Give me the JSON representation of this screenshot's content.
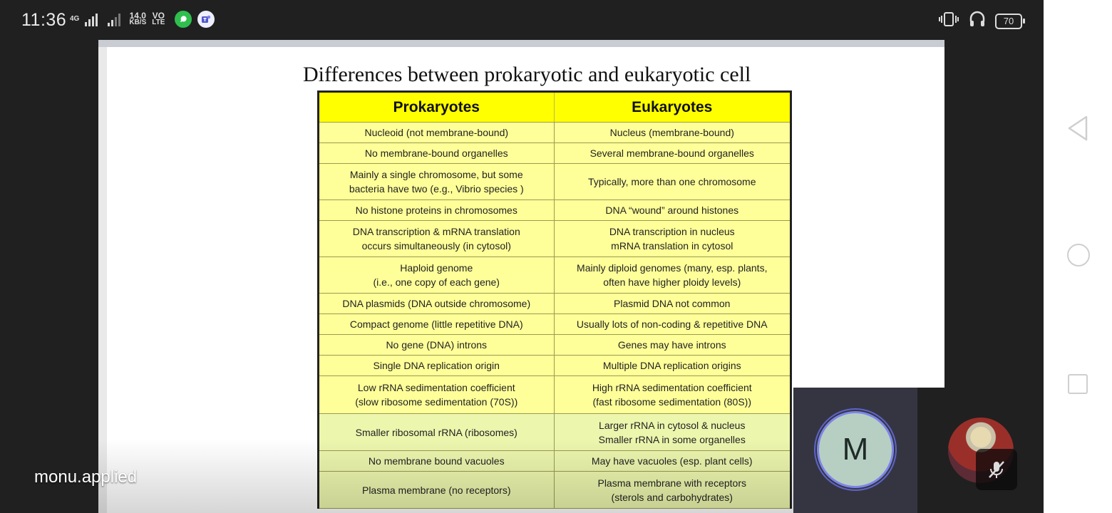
{
  "status_bar": {
    "time": "11:36",
    "network_type": "4G",
    "speed_value": "14.0",
    "speed_unit": "KB/S",
    "volte_top": "VO",
    "volte_bottom": "LTE",
    "battery_level": "70",
    "app_icons": [
      "whatsapp-icon",
      "teams-icon"
    ]
  },
  "shared_slide": {
    "title": "Differences between prokaryotic and eukaryotic cell",
    "columns": [
      "Prokaryotes",
      "Eukaryotes"
    ],
    "rows": [
      [
        "Nucleoid (not membrane-bound)",
        "Nucleus (membrane-bound)"
      ],
      [
        "No membrane-bound organelles",
        "Several membrane-bound organelles"
      ],
      [
        "Mainly a single chromosome, but some\nbacteria have two (e.g., Vibrio species )",
        "Typically, more than one chromosome"
      ],
      [
        "No histone proteins in chromosomes",
        "DNA “wound” around histones"
      ],
      [
        "DNA transcription & mRNA translation\noccurs simultaneously (in cytosol)",
        "DNA transcription in nucleus\nmRNA translation in cytosol"
      ],
      [
        "Haploid genome\n(i.e., one copy of each gene)",
        "Mainly diploid genomes (many, esp. plants,\noften have higher ploidy levels)"
      ],
      [
        "DNA plasmids (DNA outside chromosome)",
        "Plasmid DNA not common"
      ],
      [
        "Compact genome (little repetitive DNA)",
        "Usually lots of non-coding & repetitive DNA"
      ],
      [
        "No gene (DNA) introns",
        "Genes may have introns"
      ],
      [
        "Single DNA replication origin",
        "Multiple DNA replication origins"
      ],
      [
        "Low rRNA sedimentation coefficient\n(slow ribosome sedimentation (70S))",
        "High rRNA sedimentation coefficient\n(fast ribosome sedimentation (80S))"
      ],
      [
        "Smaller ribosomal rRNA (ribosomes)",
        "Larger rRNA in cytosol & nucleus\nSmaller rRNA in some organelles"
      ],
      [
        "No membrane bound vacuoles",
        "May have vacuoles (esp. plant cells)"
      ],
      [
        "Plasma membrane (no receptors)",
        "Plasma membrane with receptors\n(sterols and carbohydrates)"
      ]
    ]
  },
  "presenter": {
    "name": "monu.applied"
  },
  "participants": {
    "self_initial": "M",
    "other_mic_state": "muted"
  },
  "colors": {
    "table_header": "#ffff00",
    "table_body": "#ffff99",
    "avatar_ring": "#7d85e8",
    "avatar_fill": "#b6cfc2"
  },
  "nav_icons": [
    "back-icon",
    "home-icon",
    "recents-icon"
  ]
}
